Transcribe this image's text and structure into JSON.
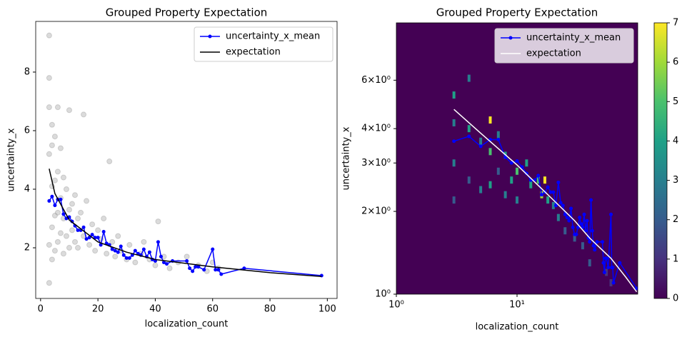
{
  "chart_data": [
    {
      "type": "scatter",
      "title": "Grouped Property Expectation",
      "x_label": "localization_count",
      "y_label": "uncertainty_x",
      "xlim": [
        -1.7,
        103.4
      ],
      "ylim": [
        0.27,
        9.73
      ],
      "xticks": [
        0,
        20,
        40,
        60,
        80,
        100
      ],
      "yticks": [
        2,
        4,
        6,
        8
      ],
      "legend": "upper right",
      "points": {
        "color": "#999999",
        "x": [
          3,
          3,
          3,
          3,
          3,
          3,
          4,
          4,
          4,
          4,
          4,
          5,
          5,
          5,
          5,
          6,
          6,
          6,
          6,
          7,
          7,
          7,
          8,
          8,
          8,
          9,
          9,
          10,
          10,
          10,
          11,
          11,
          12,
          12,
          13,
          13,
          14,
          15,
          15,
          16,
          17,
          18,
          19,
          20,
          21,
          22,
          23,
          24,
          25,
          26,
          27,
          28,
          30,
          31,
          33,
          35,
          36,
          38,
          40,
          41,
          43,
          45,
          48,
          51,
          55,
          58,
          60,
          62
        ],
        "y": [
          9.25,
          7.8,
          6.8,
          5.2,
          2.1,
          0.8,
          6.2,
          5.5,
          4.1,
          2.7,
          1.6,
          5.8,
          4.3,
          3.1,
          1.9,
          6.8,
          4.6,
          3.2,
          2.2,
          5.4,
          3.7,
          2.5,
          4.4,
          3.0,
          1.8,
          4.0,
          2.4,
          6.7,
          3.3,
          2.0,
          3.5,
          2.6,
          3.8,
          2.2,
          3.0,
          2.0,
          3.2,
          6.55,
          2.4,
          3.6,
          2.1,
          2.8,
          1.9,
          2.6,
          2.3,
          3.0,
          1.8,
          4.95,
          2.2,
          1.7,
          2.4,
          1.9,
          1.6,
          2.1,
          1.5,
          1.8,
          2.2,
          1.6,
          1.4,
          2.9,
          1.7,
          1.3,
          1.5,
          1.7,
          1.4,
          1.2,
          1.5,
          1.3
        ]
      },
      "series": [
        {
          "name": "uncertainty_x_mean",
          "color": "#0000ff",
          "marker": true,
          "x": [
            3,
            4,
            5,
            6,
            7,
            8,
            9,
            10,
            11,
            12,
            13,
            14,
            15,
            16,
            17,
            18,
            19,
            20,
            21,
            22,
            23,
            24,
            25,
            26,
            27,
            28,
            29,
            30,
            31,
            32,
            33,
            34,
            35,
            36,
            37,
            38,
            39,
            40,
            41,
            42,
            43,
            44,
            46,
            51,
            52,
            53,
            54,
            55,
            57,
            60,
            61,
            62,
            63,
            71,
            98
          ],
          "values": [
            3.6,
            3.75,
            3.45,
            3.65,
            3.65,
            3.15,
            3.0,
            3.05,
            2.9,
            2.75,
            2.6,
            2.6,
            2.7,
            2.3,
            2.35,
            2.45,
            2.35,
            2.35,
            2.1,
            2.55,
            2.15,
            2.1,
            1.95,
            1.9,
            1.85,
            2.05,
            1.75,
            1.65,
            1.65,
            1.75,
            1.9,
            1.8,
            1.75,
            1.95,
            1.7,
            1.85,
            1.6,
            1.55,
            2.2,
            1.7,
            1.5,
            1.45,
            1.55,
            1.55,
            1.3,
            1.2,
            1.35,
            1.35,
            1.25,
            1.95,
            1.25,
            1.25,
            1.1,
            1.3,
            1.05
          ]
        },
        {
          "name": "expectation",
          "color": "#000000",
          "marker": false,
          "x": [
            3,
            5,
            10,
            20,
            30,
            40,
            60,
            80,
            98
          ],
          "values": [
            4.7,
            3.85,
            2.95,
            2.2,
            1.85,
            1.6,
            1.35,
            1.15,
            1.02
          ]
        }
      ]
    },
    {
      "type": "heatmap",
      "title": "Grouped Property Expectation",
      "x_label": "localization_count",
      "y_label": "uncertainty_x",
      "xscale": "log",
      "yscale": "log",
      "xlim": [
        1,
        100
      ],
      "ylim": [
        1,
        9.7
      ],
      "xticks": [
        {
          "value": 1,
          "label": "10⁰"
        },
        {
          "value": 10,
          "label": "10¹"
        }
      ],
      "yticks": [
        {
          "value": 1,
          "label": "10⁰"
        },
        {
          "value": 2,
          "label": "2×10⁰"
        },
        {
          "value": 3,
          "label": "3×10⁰"
        },
        {
          "value": 4,
          "label": "4×10⁰"
        },
        {
          "value": 6,
          "label": "6×10⁰"
        }
      ],
      "legend": "upper right",
      "background": "#440154",
      "colormap": [
        "#440154",
        "#46327e",
        "#365c8d",
        "#277f8e",
        "#1fa187",
        "#4ac16d",
        "#a0da39",
        "#fde725"
      ],
      "clim": [
        0,
        7
      ],
      "cticks": [
        0,
        1,
        2,
        3,
        4,
        5,
        6,
        7
      ],
      "cells": {
        "x": [
          3,
          3,
          3,
          3,
          4,
          4,
          4,
          5,
          5,
          6,
          6,
          6,
          7,
          7,
          8,
          8,
          9,
          10,
          10,
          12,
          13,
          15,
          16,
          17,
          18,
          20,
          22,
          25,
          30,
          35,
          40,
          55,
          60
        ],
        "y": [
          5.3,
          4.2,
          3.0,
          2.2,
          6.1,
          4.0,
          2.6,
          3.6,
          2.4,
          4.3,
          3.3,
          2.5,
          3.8,
          2.8,
          3.2,
          2.3,
          2.6,
          2.8,
          2.2,
          3.0,
          2.5,
          2.6,
          2.3,
          2.6,
          2.2,
          2.1,
          1.9,
          1.7,
          1.6,
          1.5,
          1.3,
          1.2,
          1.1
        ],
        "values": [
          4,
          3,
          3,
          2,
          3,
          4,
          2,
          3,
          3,
          7,
          5,
          4,
          3,
          2,
          4,
          3,
          4,
          5,
          3,
          4,
          4,
          5,
          6,
          7,
          4,
          3,
          3,
          2,
          2,
          2,
          2,
          1,
          1
        ]
      },
      "series": [
        {
          "name": "uncertainty_x_mean",
          "color": "#0000ff",
          "marker": true,
          "x": [
            3,
            4,
            5,
            6,
            7,
            8,
            9,
            10,
            11,
            12,
            13,
            14,
            15,
            16,
            17,
            18,
            19,
            20,
            21,
            22,
            23,
            24,
            25,
            26,
            27,
            28,
            29,
            30,
            31,
            32,
            33,
            34,
            35,
            36,
            37,
            38,
            39,
            40,
            41,
            42,
            43,
            44,
            46,
            51,
            52,
            53,
            54,
            55,
            57,
            60,
            61,
            62,
            63,
            71,
            98
          ],
          "values": [
            3.6,
            3.75,
            3.45,
            3.65,
            3.65,
            3.15,
            3.0,
            3.05,
            2.9,
            2.75,
            2.6,
            2.6,
            2.7,
            2.3,
            2.35,
            2.45,
            2.35,
            2.35,
            2.1,
            2.55,
            2.15,
            2.1,
            1.95,
            1.9,
            1.85,
            2.05,
            1.75,
            1.65,
            1.65,
            1.75,
            1.9,
            1.8,
            1.75,
            1.95,
            1.7,
            1.85,
            1.6,
            1.55,
            2.2,
            1.7,
            1.5,
            1.45,
            1.55,
            1.55,
            1.3,
            1.2,
            1.35,
            1.35,
            1.25,
            1.95,
            1.25,
            1.25,
            1.1,
            1.3,
            1.05
          ]
        },
        {
          "name": "expectation",
          "color": "#ffffff",
          "marker": false,
          "x": [
            3,
            5,
            10,
            20,
            30,
            40,
            60,
            80,
            98
          ],
          "values": [
            4.7,
            3.85,
            2.95,
            2.2,
            1.85,
            1.6,
            1.35,
            1.15,
            1.02
          ]
        }
      ]
    }
  ]
}
